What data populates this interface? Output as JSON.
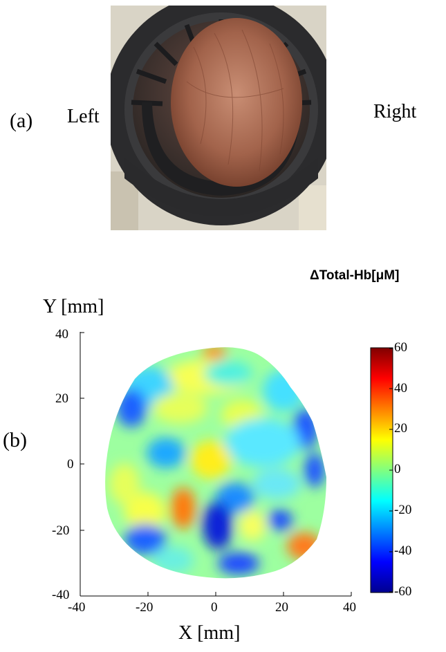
{
  "panel_a": {
    "label": "(a)",
    "left_label": "Left",
    "right_label": "Right"
  },
  "panel_b": {
    "label": "(b)",
    "colorbar_title": "ΔTotal-Hb[μM]",
    "y_axis_title": "Y [mm]",
    "x_axis_title": "X [mm]",
    "x_ticks": [
      "-40",
      "-20",
      "0",
      "20",
      "40"
    ],
    "y_ticks": [
      "40",
      "20",
      "0",
      "-20",
      "-40"
    ],
    "colorbar_ticks": [
      "60",
      "40",
      "20",
      "0",
      "-20",
      "-40",
      "-60"
    ],
    "colormap": [
      "#00008f",
      "#0000ff",
      "#0080ff",
      "#00ffff",
      "#80ff80",
      "#ffff00",
      "#ff8000",
      "#ff0000",
      "#800000"
    ]
  }
}
